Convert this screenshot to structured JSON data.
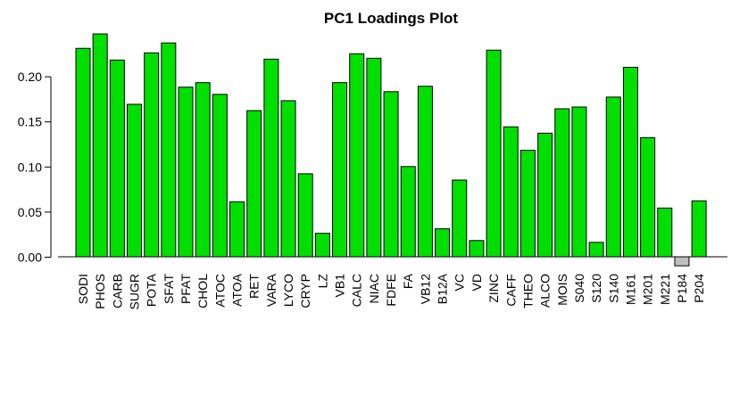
{
  "chart_data": {
    "type": "bar",
    "title": "PC1 Loadings Plot",
    "xlabel": "",
    "ylabel": "",
    "categories": [
      "SODI",
      "PHOS",
      "CARB",
      "SUGR",
      "POTA",
      "SFAT",
      "PFAT",
      "CHOL",
      "ATOC",
      "ATOA",
      "RET",
      "VARA",
      "LYCO",
      "CRYP",
      "LZ",
      "VB1",
      "CALC",
      "NIAC",
      "FDFE",
      "FA",
      "VB12",
      "B12A",
      "VC",
      "VD",
      "ZINC",
      "CAFF",
      "THEO",
      "ALCO",
      "MOIS",
      "S040",
      "S120",
      "S140",
      "M161",
      "M201",
      "M221",
      "P184",
      "P204"
    ],
    "values": [
      0.231,
      0.247,
      0.218,
      0.169,
      0.226,
      0.237,
      0.188,
      0.193,
      0.18,
      0.061,
      0.162,
      0.219,
      0.173,
      0.092,
      0.026,
      0.193,
      0.225,
      0.22,
      0.183,
      0.1,
      0.189,
      0.031,
      0.085,
      0.018,
      0.229,
      0.144,
      0.118,
      0.137,
      0.164,
      0.166,
      0.016,
      0.177,
      0.21,
      0.132,
      0.054,
      -0.01,
      0.062
    ],
    "ylim": [
      -0.01,
      0.25
    ],
    "yticks": [
      "0.00",
      "0.05",
      "0.10",
      "0.15",
      "0.20"
    ],
    "grid": false,
    "legend": "none",
    "colors": {
      "positive": "#00e000",
      "negative": "#bebebe",
      "border": "#000000"
    }
  }
}
